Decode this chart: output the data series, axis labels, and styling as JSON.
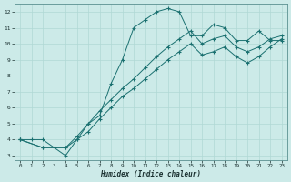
{
  "xlabel": "Humidex (Indice chaleur)",
  "xlim": [
    -0.5,
    23.5
  ],
  "ylim": [
    2.7,
    12.5
  ],
  "xticks": [
    0,
    1,
    2,
    3,
    4,
    5,
    6,
    7,
    8,
    9,
    10,
    11,
    12,
    13,
    14,
    15,
    16,
    17,
    18,
    19,
    20,
    21,
    22,
    23
  ],
  "yticks": [
    3,
    4,
    5,
    6,
    7,
    8,
    9,
    10,
    11,
    12
  ],
  "background_color": "#cceae8",
  "line_color": "#1a7070",
  "grid_color": "#b0d8d5",
  "line1_x": [
    0,
    1,
    2,
    3,
    4,
    5,
    6,
    7,
    8,
    9,
    10,
    11,
    12,
    13,
    14,
    15,
    16,
    17,
    18,
    19,
    20,
    21,
    22,
    23
  ],
  "line1_y": [
    4.0,
    4.0,
    4.0,
    3.5,
    3.0,
    4.0,
    5.0,
    5.5,
    7.5,
    9.0,
    11.0,
    11.5,
    12.0,
    12.2,
    12.0,
    10.5,
    10.5,
    11.2,
    11.0,
    10.2,
    10.2,
    10.8,
    10.2,
    10.2
  ],
  "line2_x": [
    0,
    2,
    4,
    5,
    6,
    7,
    8,
    9,
    10,
    11,
    12,
    13,
    14,
    15,
    16,
    17,
    18,
    19,
    20,
    21,
    22,
    23
  ],
  "line2_y": [
    4.0,
    3.5,
    3.5,
    4.2,
    5.0,
    5.8,
    6.5,
    7.2,
    7.8,
    8.5,
    9.2,
    9.8,
    10.3,
    10.8,
    10.0,
    10.3,
    10.5,
    9.8,
    9.5,
    9.8,
    10.3,
    10.5
  ],
  "line3_x": [
    0,
    2,
    4,
    5,
    6,
    7,
    8,
    9,
    10,
    11,
    12,
    13,
    14,
    15,
    16,
    17,
    18,
    19,
    20,
    21,
    22,
    23
  ],
  "line3_y": [
    4.0,
    3.5,
    3.5,
    4.0,
    4.5,
    5.3,
    6.0,
    6.7,
    7.2,
    7.8,
    8.4,
    9.0,
    9.5,
    10.0,
    9.3,
    9.5,
    9.8,
    9.2,
    8.8,
    9.2,
    9.8,
    10.3
  ]
}
